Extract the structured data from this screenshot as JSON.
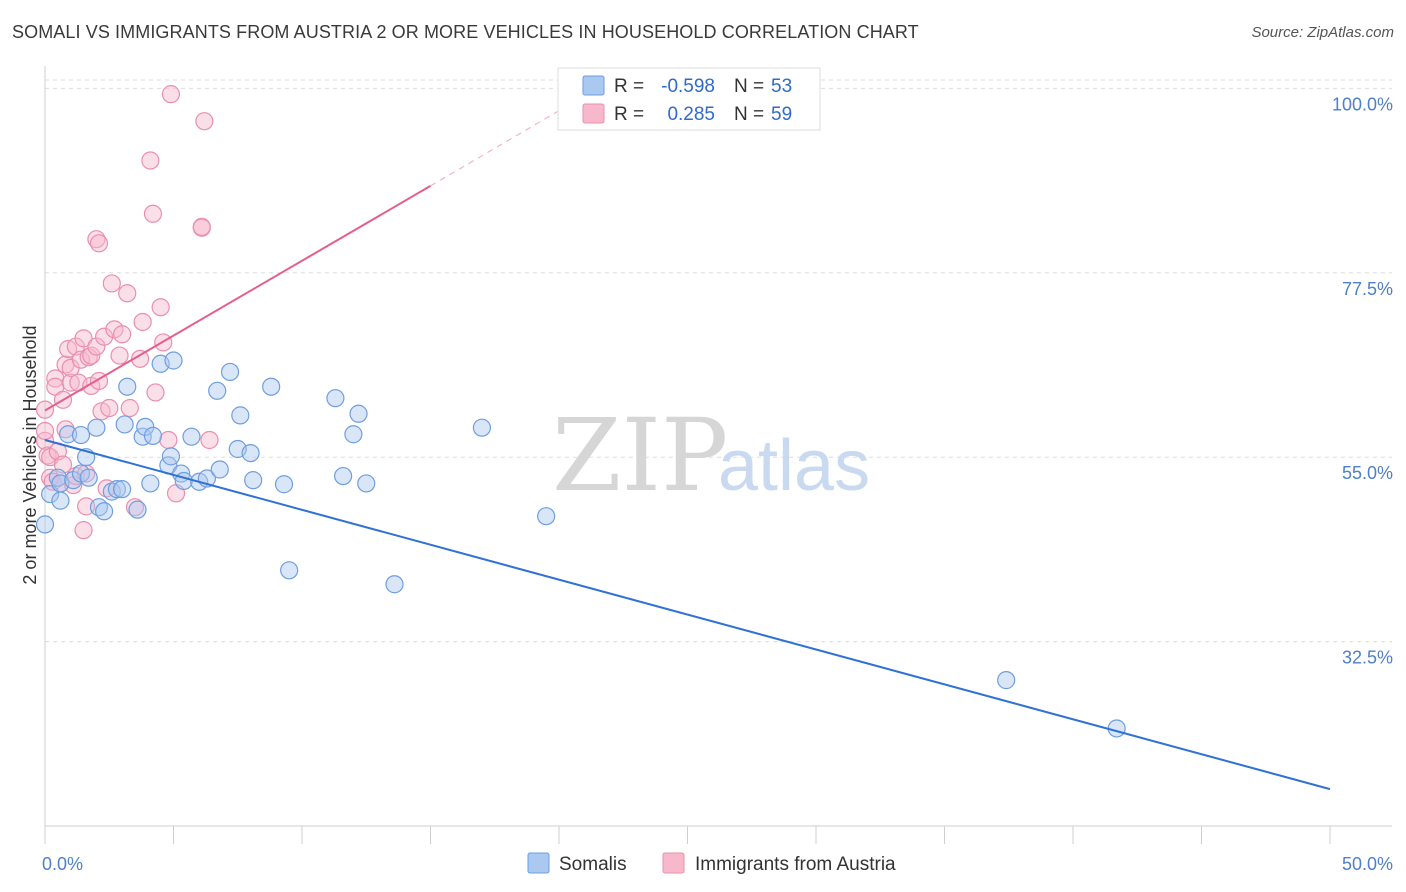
{
  "title": "SOMALI VS IMMIGRANTS FROM AUSTRIA 2 OR MORE VEHICLES IN HOUSEHOLD CORRELATION CHART",
  "source": "Source: ZipAtlas.com",
  "watermark": {
    "zip": "ZIP",
    "atlas": "atlas"
  },
  "colors": {
    "blue_fill": "#aac8f0",
    "blue_stroke": "#6f9ee0",
    "blue_line": "#2f72d4",
    "pink_fill": "#f7b8cc",
    "pink_stroke": "#ea8fae",
    "pink_line": "#e45f8c",
    "grid": "#dddddd",
    "axis_label": "#4f7fc9"
  },
  "legend_top": [
    {
      "series": "Somalis",
      "r_label": "R =",
      "r_value": "-0.598",
      "n_label": "N =",
      "n_value": "53"
    },
    {
      "series": "Immigrants from Austria",
      "r_label": "R =",
      "r_value": "0.285",
      "n_label": "N =",
      "n_value": "59"
    }
  ],
  "legend_bottom": [
    "Somalis",
    "Immigrants from Austria"
  ],
  "chart_data": {
    "type": "scatter",
    "title": "SOMALI VS IMMIGRANTS FROM AUSTRIA 2 OR MORE VEHICLES IN HOUSEHOLD CORRELATION CHART",
    "xlabel": "",
    "ylabel": "2 or more Vehicles in Household",
    "xlim": [
      0,
      50
    ],
    "ylim": [
      10,
      102
    ],
    "x_tick_labels": [
      "0.0%",
      "50.0%"
    ],
    "y_ticks": [
      32.5,
      55.0,
      77.5,
      100.0
    ],
    "y_tick_labels": [
      "32.5%",
      "55.0%",
      "77.5%",
      "100.0%"
    ],
    "series": [
      {
        "name": "Somalis",
        "color": "blue",
        "r": -0.598,
        "n": 53,
        "trend": {
          "x0": 0,
          "y0": 57.1,
          "x1": 50,
          "y1": 14.5
        },
        "points": [
          [
            0.0,
            46.8
          ],
          [
            0.2,
            50.5
          ],
          [
            0.5,
            52.5
          ],
          [
            0.6,
            51.8
          ],
          [
            0.6,
            49.7
          ],
          [
            0.9,
            57.8
          ],
          [
            1.1,
            52.2
          ],
          [
            1.4,
            53.0
          ],
          [
            1.4,
            57.7
          ],
          [
            1.6,
            55.0
          ],
          [
            1.7,
            52.5
          ],
          [
            2.0,
            58.6
          ],
          [
            2.1,
            48.9
          ],
          [
            2.3,
            48.4
          ],
          [
            2.6,
            50.8
          ],
          [
            2.8,
            51.1
          ],
          [
            3.0,
            51.1
          ],
          [
            3.1,
            59.0
          ],
          [
            3.2,
            63.6
          ],
          [
            3.6,
            48.6
          ],
          [
            3.8,
            57.5
          ],
          [
            3.9,
            58.7
          ],
          [
            4.1,
            51.8
          ],
          [
            4.2,
            57.6
          ],
          [
            4.5,
            66.4
          ],
          [
            4.8,
            54.0
          ],
          [
            4.9,
            55.1
          ],
          [
            5.0,
            66.8
          ],
          [
            5.3,
            53.0
          ],
          [
            5.4,
            52.1
          ],
          [
            5.7,
            57.5
          ],
          [
            6.0,
            52.0
          ],
          [
            6.3,
            52.4
          ],
          [
            6.7,
            63.1
          ],
          [
            6.8,
            53.5
          ],
          [
            7.2,
            65.4
          ],
          [
            7.5,
            56.0
          ],
          [
            7.6,
            60.1
          ],
          [
            8.0,
            55.5
          ],
          [
            8.1,
            52.2
          ],
          [
            8.8,
            63.6
          ],
          [
            9.3,
            51.7
          ],
          [
            9.5,
            41.2
          ],
          [
            11.3,
            62.2
          ],
          [
            11.6,
            52.7
          ],
          [
            12.0,
            57.8
          ],
          [
            12.2,
            60.3
          ],
          [
            12.5,
            51.8
          ],
          [
            13.6,
            39.5
          ],
          [
            17.0,
            58.6
          ],
          [
            19.5,
            47.8
          ],
          [
            37.4,
            27.8
          ],
          [
            41.7,
            21.9
          ]
        ]
      },
      {
        "name": "Immigrants from Austria",
        "color": "pink",
        "r": 0.285,
        "n": 59,
        "trend": {
          "x0": 0,
          "y0": 60.7,
          "x1": 15.0,
          "y1": 88.1
        },
        "trend_dashed": {
          "x0": 15.0,
          "y0": 88.1,
          "x1": 20.5,
          "y1": 98.2
        },
        "points": [
          [
            0.0,
            57.0
          ],
          [
            0.0,
            60.8
          ],
          [
            0.0,
            58.2
          ],
          [
            0.1,
            55.2
          ],
          [
            0.2,
            55.0
          ],
          [
            0.2,
            52.5
          ],
          [
            0.3,
            52.0
          ],
          [
            0.4,
            64.6
          ],
          [
            0.4,
            63.6
          ],
          [
            0.5,
            55.7
          ],
          [
            0.6,
            51.8
          ],
          [
            0.7,
            54.1
          ],
          [
            0.7,
            62.0
          ],
          [
            0.8,
            58.4
          ],
          [
            0.8,
            66.3
          ],
          [
            0.9,
            68.2
          ],
          [
            1.0,
            64.1
          ],
          [
            1.0,
            65.9
          ],
          [
            1.1,
            51.6
          ],
          [
            1.2,
            68.5
          ],
          [
            1.2,
            52.7
          ],
          [
            1.3,
            64.1
          ],
          [
            1.4,
            66.9
          ],
          [
            1.5,
            69.5
          ],
          [
            1.5,
            46.1
          ],
          [
            1.6,
            49.0
          ],
          [
            1.6,
            53.0
          ],
          [
            1.7,
            67.2
          ],
          [
            1.8,
            67.4
          ],
          [
            1.8,
            63.7
          ],
          [
            2.0,
            68.5
          ],
          [
            2.0,
            81.6
          ],
          [
            2.1,
            81.1
          ],
          [
            2.1,
            64.3
          ],
          [
            2.2,
            60.6
          ],
          [
            2.3,
            69.7
          ],
          [
            2.4,
            51.2
          ],
          [
            2.5,
            61.0
          ],
          [
            2.6,
            76.2
          ],
          [
            2.7,
            70.6
          ],
          [
            2.9,
            67.4
          ],
          [
            3.0,
            70.0
          ],
          [
            3.2,
            75.0
          ],
          [
            3.3,
            61.0
          ],
          [
            3.5,
            48.9
          ],
          [
            3.7,
            67.0
          ],
          [
            3.8,
            71.5
          ],
          [
            4.1,
            91.2
          ],
          [
            4.2,
            84.7
          ],
          [
            4.3,
            62.9
          ],
          [
            4.5,
            73.3
          ],
          [
            4.6,
            69.0
          ],
          [
            4.8,
            57.1
          ],
          [
            4.9,
            99.3
          ],
          [
            5.1,
            50.6
          ],
          [
            6.1,
            83.0
          ],
          [
            6.1,
            83.1
          ],
          [
            6.2,
            96.0
          ],
          [
            6.4,
            57.1
          ]
        ]
      }
    ]
  }
}
